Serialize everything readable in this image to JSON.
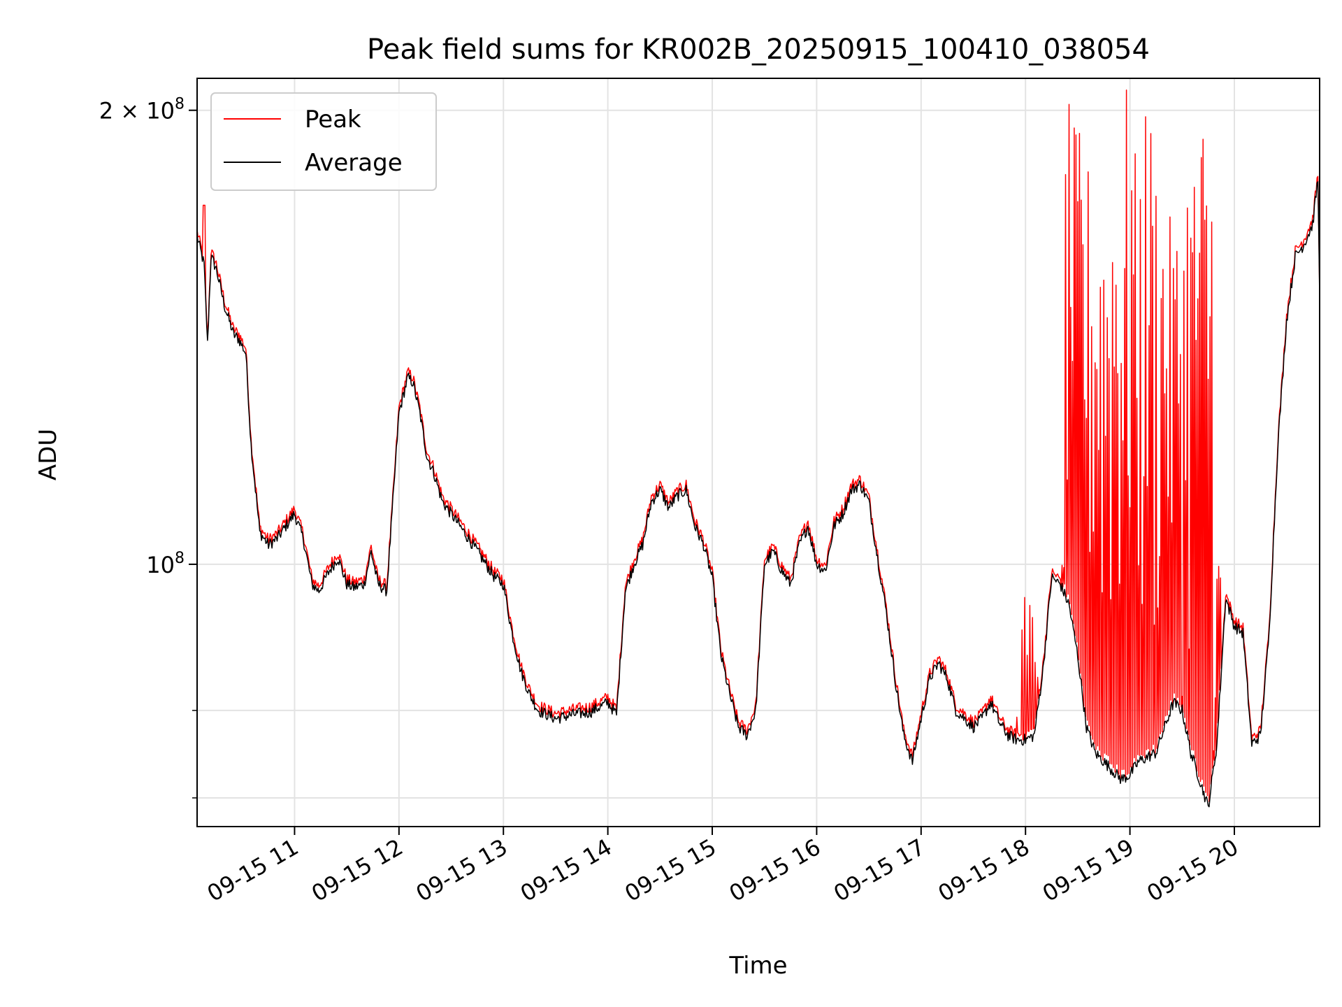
{
  "chart_data": {
    "type": "line",
    "title": "Peak field sums for KR002B_20250915_100410_038054",
    "xlabel": "Time",
    "ylabel": "ADU",
    "y_scale": "log",
    "ylim": [
      67000000,
      210000000
    ],
    "x_range": [
      "2025-09-15 10:04",
      "2025-09-15 20:49"
    ],
    "grid": true,
    "legend_position": "upper left",
    "x_ticks": [
      {
        "time": "2025-09-15 11:00",
        "label": "09-15 11"
      },
      {
        "time": "2025-09-15 12:00",
        "label": "09-15 12"
      },
      {
        "time": "2025-09-15 13:00",
        "label": "09-15 13"
      },
      {
        "time": "2025-09-15 14:00",
        "label": "09-15 14"
      },
      {
        "time": "2025-09-15 15:00",
        "label": "09-15 15"
      },
      {
        "time": "2025-09-15 16:00",
        "label": "09-15 16"
      },
      {
        "time": "2025-09-15 17:00",
        "label": "09-15 17"
      },
      {
        "time": "2025-09-15 18:00",
        "label": "09-15 18"
      },
      {
        "time": "2025-09-15 19:00",
        "label": "09-15 19"
      },
      {
        "time": "2025-09-15 20:00",
        "label": "09-15 20"
      }
    ],
    "y_ticks_major": [
      {
        "value": 100000000,
        "base": "10",
        "exp": "8",
        "coef": ""
      },
      {
        "value": 200000000,
        "base": "10",
        "exp": "8",
        "coef": "2 × "
      }
    ],
    "y_ticks_minor": [
      70000000,
      80000000
    ],
    "series": [
      {
        "name": "Average",
        "color": "#000000",
        "x": [
          "2025-09-15 10:04",
          "2025-09-15 10:08",
          "2025-09-15 10:10",
          "2025-09-15 10:12",
          "2025-09-15 10:15",
          "2025-09-15 10:20",
          "2025-09-15 10:25",
          "2025-09-15 10:28",
          "2025-09-15 10:32",
          "2025-09-15 10:35",
          "2025-09-15 10:40",
          "2025-09-15 10:45",
          "2025-09-15 10:50",
          "2025-09-15 10:55",
          "2025-09-15 11:00",
          "2025-09-15 11:05",
          "2025-09-15 11:10",
          "2025-09-15 11:14",
          "2025-09-15 11:20",
          "2025-09-15 11:25",
          "2025-09-15 11:30",
          "2025-09-15 11:34",
          "2025-09-15 11:40",
          "2025-09-15 11:44",
          "2025-09-15 11:48",
          "2025-09-15 11:53",
          "2025-09-15 12:00",
          "2025-09-15 12:05",
          "2025-09-15 12:08",
          "2025-09-15 12:12",
          "2025-09-15 12:16",
          "2025-09-15 12:20",
          "2025-09-15 12:25",
          "2025-09-15 12:30",
          "2025-09-15 12:35",
          "2025-09-15 12:40",
          "2025-09-15 12:45",
          "2025-09-15 12:50",
          "2025-09-15 12:55",
          "2025-09-15 13:00",
          "2025-09-15 13:05",
          "2025-09-15 13:10",
          "2025-09-15 13:15",
          "2025-09-15 13:20",
          "2025-09-15 13:30",
          "2025-09-15 13:40",
          "2025-09-15 13:50",
          "2025-09-15 14:00",
          "2025-09-15 14:05",
          "2025-09-15 14:10",
          "2025-09-15 14:15",
          "2025-09-15 14:20",
          "2025-09-15 14:25",
          "2025-09-15 14:30",
          "2025-09-15 14:35",
          "2025-09-15 14:40",
          "2025-09-15 14:45",
          "2025-09-15 14:50",
          "2025-09-15 14:55",
          "2025-09-15 15:00",
          "2025-09-15 15:05",
          "2025-09-15 15:10",
          "2025-09-15 15:15",
          "2025-09-15 15:20",
          "2025-09-15 15:25",
          "2025-09-15 15:30",
          "2025-09-15 15:35",
          "2025-09-15 15:40",
          "2025-09-15 15:45",
          "2025-09-15 15:50",
          "2025-09-15 15:55",
          "2025-09-15 16:00",
          "2025-09-15 16:05",
          "2025-09-15 16:10",
          "2025-09-15 16:15",
          "2025-09-15 16:20",
          "2025-09-15 16:25",
          "2025-09-15 16:30",
          "2025-09-15 16:35",
          "2025-09-15 16:40",
          "2025-09-15 16:45",
          "2025-09-15 16:50",
          "2025-09-15 16:55",
          "2025-09-15 17:00",
          "2025-09-15 17:05",
          "2025-09-15 17:10",
          "2025-09-15 17:15",
          "2025-09-15 17:20",
          "2025-09-15 17:25",
          "2025-09-15 17:30",
          "2025-09-15 17:35",
          "2025-09-15 17:40",
          "2025-09-15 17:45",
          "2025-09-15 17:50",
          "2025-09-15 17:55",
          "2025-09-15 18:00",
          "2025-09-15 18:05",
          "2025-09-15 18:10",
          "2025-09-15 18:15",
          "2025-09-15 18:20",
          "2025-09-15 18:25",
          "2025-09-15 18:30",
          "2025-09-15 18:35",
          "2025-09-15 18:40",
          "2025-09-15 18:45",
          "2025-09-15 18:50",
          "2025-09-15 18:55",
          "2025-09-15 19:00",
          "2025-09-15 19:05",
          "2025-09-15 19:10",
          "2025-09-15 19:15",
          "2025-09-15 19:20",
          "2025-09-15 19:25",
          "2025-09-15 19:30",
          "2025-09-15 19:35",
          "2025-09-15 19:40",
          "2025-09-15 19:45",
          "2025-09-15 19:50",
          "2025-09-15 19:55",
          "2025-09-15 20:00",
          "2025-09-15 20:05",
          "2025-09-15 20:10",
          "2025-09-15 20:15",
          "2025-09-15 20:20",
          "2025-09-15 20:25",
          "2025-09-15 20:30",
          "2025-09-15 20:35",
          "2025-09-15 20:40",
          "2025-09-15 20:45",
          "2025-09-15 20:48",
          "2025-09-15 20:49"
        ],
        "values": [
          165000000,
          158000000,
          140000000,
          160000000,
          157000000,
          148000000,
          142000000,
          141000000,
          138000000,
          120000000,
          105000000,
          103000000,
          104000000,
          106000000,
          108000000,
          104000000,
          97000000,
          96000000,
          99000000,
          101000000,
          97000000,
          96500000,
          97000000,
          102000000,
          97000000,
          96000000,
          126000000,
          133000000,
          132000000,
          126000000,
          118000000,
          115000000,
          110000000,
          108000000,
          106000000,
          104000000,
          102000000,
          100000000,
          98000000,
          97000000,
          90000000,
          85000000,
          82000000,
          80000000,
          79000000,
          79500000,
          79800000,
          81000000,
          79500000,
          96000000,
          100000000,
          103000000,
          110000000,
          112000000,
          109000000,
          111000000,
          112000000,
          106000000,
          103000000,
          98000000,
          87000000,
          82000000,
          78000000,
          77000000,
          80000000,
          100000000,
          102000000,
          99000000,
          97000000,
          103000000,
          106000000,
          100000000,
          99000000,
          106000000,
          108000000,
          112000000,
          113000000,
          110000000,
          101000000,
          93000000,
          84000000,
          77000000,
          74000000,
          79000000,
          84000000,
          86000000,
          84000000,
          80000000,
          79000000,
          78000000,
          79000000,
          81000000,
          78500000,
          77000000,
          76500000,
          76500000,
          77000000,
          85000000,
          98000000,
          97000000,
          94000000,
          87000000,
          78000000,
          75000000,
          74000000,
          73000000,
          72000000,
          72500000,
          74000000,
          74500000,
          75000000,
          78000000,
          81000000,
          80000000,
          75000000,
          72000000,
          69000000,
          76000000,
          95000000,
          91000000,
          90000000,
          76000000,
          77000000,
          90000000,
          120000000,
          145000000,
          160000000,
          163000000,
          168000000,
          180000000,
          150000000
        ]
      },
      {
        "name": "Peak",
        "color": "#ff0000",
        "x": [
          "2025-09-15 10:04",
          "2025-09-15 10:07",
          "2025-09-15 10:08",
          "2025-09-15 10:09",
          "2025-09-15 18:00",
          "2025-09-15 18:05",
          "2025-09-15 18:20",
          "2025-09-15 18:25",
          "2025-09-15 18:30",
          "2025-09-15 18:35",
          "2025-09-15 18:40",
          "2025-09-15 18:45",
          "2025-09-15 18:50",
          "2025-09-15 18:55",
          "2025-09-15 19:00",
          "2025-09-15 19:05",
          "2025-09-15 19:10",
          "2025-09-15 19:15",
          "2025-09-15 19:20",
          "2025-09-15 19:25",
          "2025-09-15 19:30",
          "2025-09-15 19:35",
          "2025-09-15 19:40",
          "2025-09-15 19:45",
          "2025-09-15 19:50",
          "2025-09-15 20:49"
        ],
        "values": [
          166000000,
          159000000,
          173000000,
          160000000,
          97000000,
          96000000,
          100000000,
          203000000,
          195000000,
          186000000,
          180000000,
          178000000,
          191000000,
          190000000,
          210000000,
          188000000,
          203000000,
          190000000,
          180000000,
          170000000,
          176000000,
          190000000,
          202000000,
          196000000,
          104000000,
          151000000
        ],
        "note_values": "Peak follows Average closely (slightly above) outside of the spike region; values listed are the visible spike maxima."
      }
    ]
  }
}
